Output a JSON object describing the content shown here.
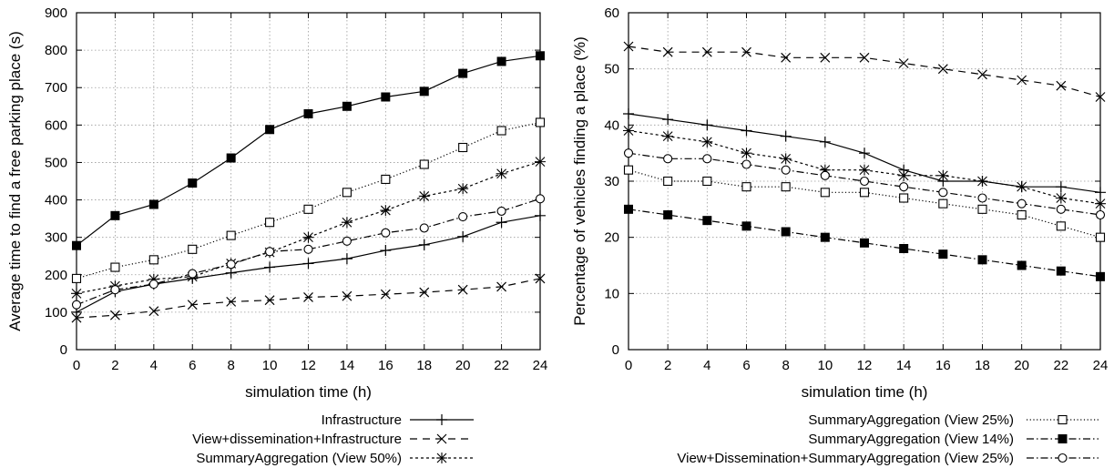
{
  "chart_data": [
    {
      "type": "line",
      "x": [
        0,
        2,
        4,
        6,
        8,
        10,
        12,
        14,
        16,
        18,
        20,
        22,
        24
      ],
      "xlabel": "simulation time  (h)",
      "ylabel": "Average time to find a free parking place (s)",
      "xlim": [
        0,
        24
      ],
      "ylim": [
        0,
        900
      ],
      "xticks": [
        0,
        2,
        4,
        6,
        8,
        10,
        12,
        14,
        16,
        18,
        20,
        22,
        24
      ],
      "yticks": [
        0,
        100,
        200,
        300,
        400,
        500,
        600,
        700,
        800,
        900
      ],
      "grid": true,
      "legend_placement": "bottom",
      "series": [
        {
          "name": "Infrastructure",
          "marker": "plus",
          "dash": "solid",
          "values": [
            100,
            155,
            175,
            190,
            205,
            220,
            230,
            243,
            265,
            280,
            302,
            340,
            358
          ]
        },
        {
          "name": "View+dissemination+Infrastructure",
          "marker": "cross",
          "dash": "dashed",
          "values": [
            85,
            92,
            103,
            120,
            128,
            132,
            140,
            143,
            148,
            153,
            160,
            168,
            190
          ]
        },
        {
          "name": "SummaryAggregation (View 50%)",
          "marker": "asterisk",
          "dash": "short-dash",
          "values": [
            150,
            170,
            188,
            195,
            230,
            260,
            300,
            340,
            372,
            410,
            430,
            470,
            502
          ]
        },
        {
          "name": "",
          "marker": "open-square",
          "dash": "dotted",
          "values": [
            190,
            220,
            240,
            268,
            305,
            340,
            375,
            420,
            455,
            495,
            540,
            585,
            607
          ]
        },
        {
          "name": "",
          "marker": "filled-square",
          "dash": "solid",
          "values": [
            278,
            358,
            388,
            445,
            512,
            588,
            630,
            650,
            675,
            690,
            738,
            770,
            785
          ]
        },
        {
          "name": "",
          "marker": "open-circle",
          "dash": "dash-dot",
          "values": [
            120,
            160,
            175,
            203,
            228,
            262,
            268,
            290,
            312,
            325,
            355,
            370,
            403
          ]
        }
      ]
    },
    {
      "type": "line",
      "x": [
        0,
        2,
        4,
        6,
        8,
        10,
        12,
        14,
        16,
        18,
        20,
        22,
        24
      ],
      "xlabel": "simulation time  (h)",
      "ylabel": "Percentage of vehicles finding a place (%)",
      "xlim": [
        0,
        24
      ],
      "ylim": [
        0,
        60
      ],
      "xticks": [
        0,
        2,
        4,
        6,
        8,
        10,
        12,
        14,
        16,
        18,
        20,
        22,
        24
      ],
      "yticks": [
        0,
        10,
        20,
        30,
        40,
        50,
        60
      ],
      "grid": true,
      "legend_placement": "bottom",
      "series": [
        {
          "name": "",
          "marker": "plus",
          "dash": "solid",
          "values": [
            42,
            41,
            40,
            39,
            38,
            37,
            35,
            32,
            30,
            30,
            29,
            29,
            28
          ]
        },
        {
          "name": "",
          "marker": "cross",
          "dash": "dashed",
          "values": [
            54,
            53,
            53,
            53,
            52,
            52,
            52,
            51,
            50,
            49,
            48,
            47,
            45
          ]
        },
        {
          "name": "",
          "marker": "asterisk",
          "dash": "short-dash",
          "values": [
            39,
            38,
            37,
            35,
            34,
            32,
            32,
            31,
            31,
            30,
            29,
            27,
            26
          ]
        },
        {
          "name": "SummaryAggregation (View 25%)",
          "marker": "open-square",
          "dash": "dotted",
          "values": [
            32,
            30,
            30,
            29,
            29,
            28,
            28,
            27,
            26,
            25,
            24,
            22,
            20
          ]
        },
        {
          "name": "SummaryAggregation (View 14%)",
          "marker": "filled-square",
          "dash": "dash-dot",
          "values": [
            25,
            24,
            23,
            22,
            21,
            20,
            19,
            18,
            17,
            16,
            15,
            14,
            13
          ]
        },
        {
          "name": "View+Dissemination+SummaryAggregation (View 25%)",
          "marker": "open-circle",
          "dash": "dash-dot",
          "values": [
            35,
            34,
            34,
            33,
            32,
            31,
            30,
            29,
            28,
            27,
            26,
            25,
            24
          ]
        }
      ]
    }
  ]
}
